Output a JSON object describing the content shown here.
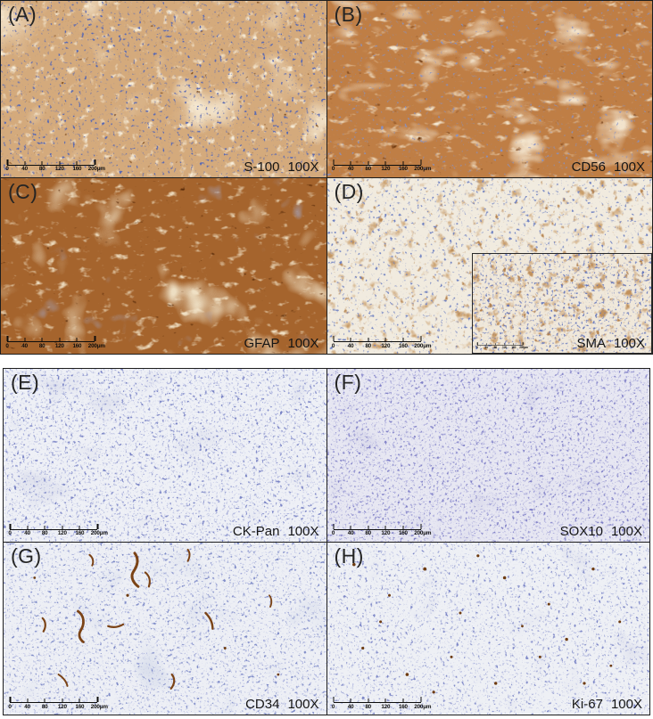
{
  "figure": {
    "panels": [
      {
        "letter": "(A)",
        "stain": "S-100",
        "magnification": "100X",
        "base_color": "#d4aa7c"
      },
      {
        "letter": "(B)",
        "stain": "CD56",
        "magnification": "100X",
        "base_color": "#bf7e45"
      },
      {
        "letter": "(C)",
        "stain": "GFAP",
        "magnification": "100X",
        "base_color": "#a5642d"
      },
      {
        "letter": "(D)",
        "stain": "SMA",
        "magnification": "100X",
        "base_color": "#f1ebdf"
      },
      {
        "letter": "(E)",
        "stain": "CK-Pan",
        "magnification": "100X",
        "base_color": "#eef0f6"
      },
      {
        "letter": "(F)",
        "stain": "SOX10",
        "magnification": "100X",
        "base_color": "#e7e7f2"
      },
      {
        "letter": "(G)",
        "stain": "CD34",
        "magnification": "100X",
        "base_color": "#edeff5"
      },
      {
        "letter": "(H)",
        "stain": "Ki-67",
        "magnification": "100X",
        "base_color": "#eef0f5"
      }
    ],
    "scale_bar": {
      "tick_labels": [
        "0",
        "40",
        "80",
        "120",
        "160",
        "200μm"
      ]
    },
    "colors": {
      "positive_stain_brown": "#a5642d",
      "weak_stain_cream": "#f1ebdf",
      "hematoxylin_blue": "#7b84c0",
      "vessel_brown": "#7b4316",
      "panel_border": "#1e1e1e",
      "label_text": "#151515",
      "background": "#ffffff"
    }
  }
}
